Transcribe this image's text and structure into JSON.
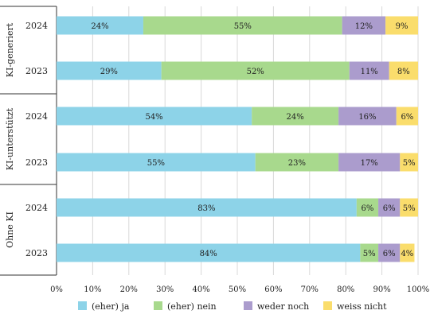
{
  "chart_data": {
    "type": "bar",
    "orientation": "horizontal",
    "stacked": true,
    "xlim": [
      0,
      100
    ],
    "x_ticks": [
      "0%",
      "10%",
      "20%",
      "30%",
      "40%",
      "50%",
      "60%",
      "70%",
      "80%",
      "90%",
      "100%"
    ],
    "legend_position": "bottom",
    "grid": "vertical",
    "series": [
      {
        "name": "(eher) ja",
        "color": "#8dd3e8"
      },
      {
        "name": "(eher) nein",
        "color": "#a8d98d"
      },
      {
        "name": "weder noch",
        "color": "#ab9ccd"
      },
      {
        "name": "weiss nicht",
        "color": "#fadd6c"
      }
    ],
    "groups": [
      {
        "label": "KI-generiert",
        "rows": [
          {
            "year": "2024",
            "values": [
              24,
              55,
              12,
              9
            ],
            "labels": [
              "24%",
              "55%",
              "12%",
              "9%"
            ]
          },
          {
            "year": "2023",
            "values": [
              29,
              52,
              11,
              8
            ],
            "labels": [
              "29%",
              "52%",
              "11%",
              "8%"
            ]
          }
        ]
      },
      {
        "label": "KI-unterstützt",
        "rows": [
          {
            "year": "2024",
            "values": [
              54,
              24,
              16,
              6
            ],
            "labels": [
              "54%",
              "24%",
              "16%",
              "6%"
            ]
          },
          {
            "year": "2023",
            "values": [
              55,
              23,
              17,
              5
            ],
            "labels": [
              "55%",
              "23%",
              "17%",
              "5%"
            ]
          }
        ]
      },
      {
        "label": "Ohne KI",
        "rows": [
          {
            "year": "2024",
            "values": [
              83,
              6,
              6,
              5
            ],
            "labels": [
              "83%",
              "6%",
              "6%",
              "5%"
            ]
          },
          {
            "year": "2023",
            "values": [
              84,
              5,
              6,
              4
            ],
            "labels": [
              "84%",
              "5%",
              "6%",
              "4%"
            ]
          }
        ]
      }
    ]
  }
}
